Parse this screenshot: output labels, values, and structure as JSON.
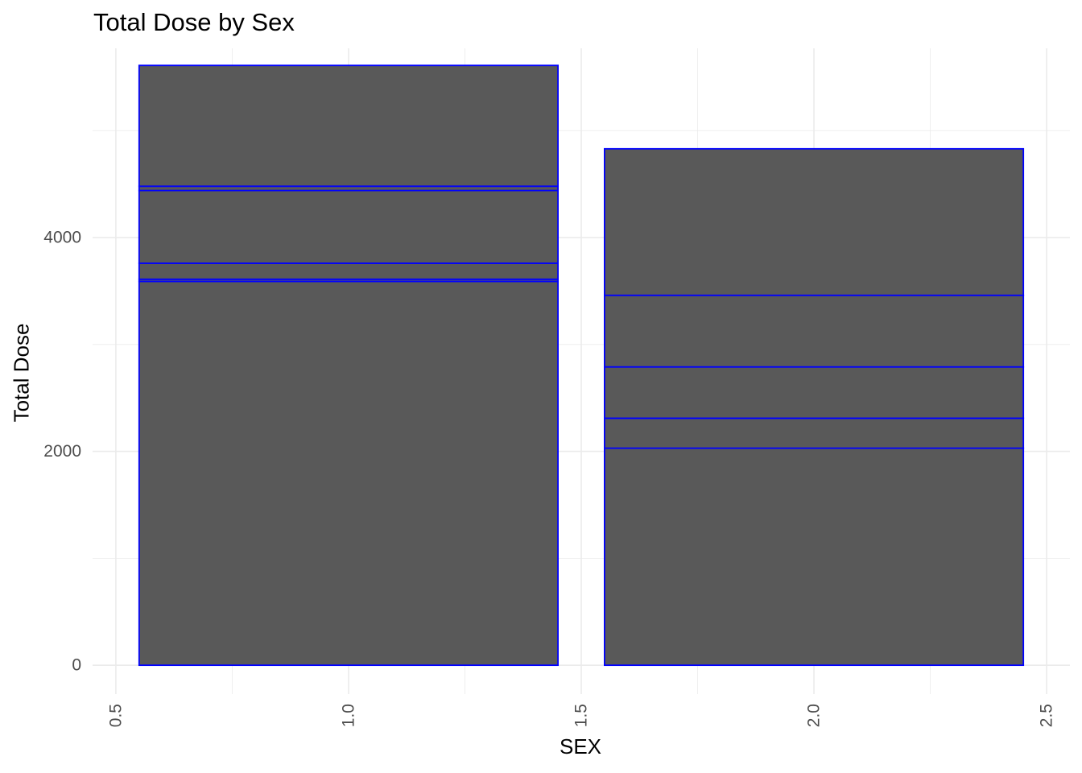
{
  "chart_data": {
    "type": "bar",
    "stacked": true,
    "title": "Total Dose by Sex",
    "xlabel": "SEX",
    "ylabel": "Total Dose",
    "xlim": [
      0.45,
      2.55
    ],
    "ylim": [
      -270,
      5770
    ],
    "x_ticks": [
      0.5,
      1.0,
      1.5,
      2.0,
      2.5
    ],
    "x_tick_labels": [
      "0.5",
      "1.0",
      "1.5",
      "2.0",
      "2.5"
    ],
    "y_ticks": [
      0,
      2000,
      4000
    ],
    "y_tick_labels": [
      "0",
      "2000",
      "4000"
    ],
    "bar_width": 0.9,
    "fill_color": "#595959",
    "outline_color": "#0000ff",
    "grid_color": "#ebebeb",
    "bars": [
      {
        "x": 1,
        "segments": [
          3590,
          20,
          150,
          680,
          40,
          1130
        ],
        "total": 5610
      },
      {
        "x": 2,
        "segments": [
          2030,
          280,
          480,
          670,
          1370
        ],
        "total": 4830
      }
    ]
  }
}
